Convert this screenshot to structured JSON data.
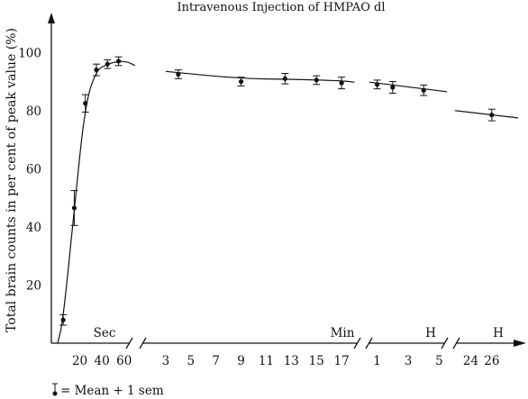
{
  "chart_data": {
    "type": "line",
    "title": "Intravenous Injection of HMPAO dl",
    "ylabel": "Total brain counts in per cent of peak value (%)",
    "ylim": [
      0,
      110
    ],
    "yticks": [
      20,
      40,
      60,
      80,
      100
    ],
    "legend_text": "= Mean + 1 sem",
    "segments": [
      {
        "unit": "Sec",
        "xlim": [
          0,
          70
        ],
        "ticks": [
          20,
          40,
          60
        ],
        "points": [
          {
            "x": 5,
            "y": 8,
            "err": 1.8
          },
          {
            "x": 15,
            "y": 46.5,
            "err": 6
          },
          {
            "x": 25,
            "y": 82.5,
            "err": 3
          },
          {
            "x": 35,
            "y": 94,
            "err": 2
          },
          {
            "x": 45,
            "y": 96,
            "err": 1.5
          },
          {
            "x": 55,
            "y": 97,
            "err": 1.5
          }
        ],
        "fit": [
          [
            0,
            0
          ],
          [
            5,
            8
          ],
          [
            15,
            46.5
          ],
          [
            25,
            82.5
          ],
          [
            35,
            94
          ],
          [
            45,
            96
          ],
          [
            55,
            97
          ],
          [
            63,
            96.8
          ],
          [
            70,
            95.5
          ]
        ]
      },
      {
        "unit": "Min",
        "xlim": [
          1.5,
          18.5
        ],
        "ticks": [
          3,
          5,
          7,
          9,
          11,
          13,
          15,
          17
        ],
        "points": [
          {
            "x": 4,
            "y": 92.5,
            "err": 1.5
          },
          {
            "x": 9,
            "y": 90,
            "err": 1.5
          },
          {
            "x": 12.5,
            "y": 91,
            "err": 1.8
          },
          {
            "x": 15,
            "y": 90.5,
            "err": 1.5
          },
          {
            "x": 17,
            "y": 89.5,
            "err": 2
          }
        ],
        "fit": [
          [
            3,
            93.5
          ],
          [
            9,
            91
          ],
          [
            13,
            90.8
          ],
          [
            17,
            90.3
          ],
          [
            18,
            89.8
          ]
        ]
      },
      {
        "unit": "H",
        "xlim": [
          0.5,
          5.5
        ],
        "ticks": [
          1,
          3,
          5
        ],
        "points": [
          {
            "x": 1,
            "y": 89,
            "err": 1.5
          },
          {
            "x": 2,
            "y": 88,
            "err": 2
          },
          {
            "x": 4,
            "y": 87,
            "err": 1.8
          }
        ],
        "fit": [
          [
            0.5,
            89.8
          ],
          [
            5.5,
            86.5
          ]
        ]
      },
      {
        "unit": "H",
        "xlim": [
          22.5,
          28.5
        ],
        "ticks": [
          24,
          26
        ],
        "points": [
          {
            "x": 26,
            "y": 78.5,
            "err": 2
          }
        ],
        "fit": [
          [
            22.5,
            80
          ],
          [
            28.5,
            77.5
          ]
        ]
      }
    ]
  }
}
